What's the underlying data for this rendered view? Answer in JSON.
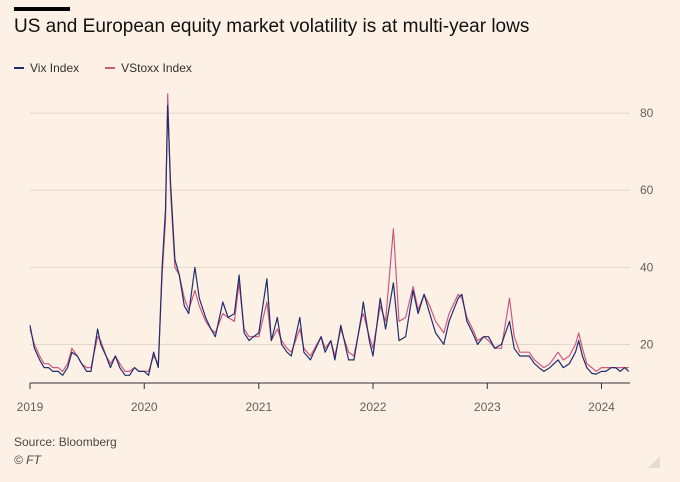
{
  "header": {
    "title": "US and European equity market volatility is at multi-year lows"
  },
  "footer": {
    "source": "Source: Bloomberg",
    "copyright": "© FT"
  },
  "colors": {
    "vix": "#1f2f6e",
    "vstoxx": "#d0587e",
    "background": "#fdf1e6",
    "grid": "#e3d6cb"
  },
  "chart_data": {
    "type": "line",
    "title": "US and European equity market volatility is at multi-year lows",
    "xlabel": "",
    "ylabel": "",
    "x_ticks": [
      "2019",
      "2020",
      "2021",
      "2022",
      "2023",
      "2024"
    ],
    "y_ticks": [
      20,
      40,
      60,
      80
    ],
    "ylim": [
      10,
      86
    ],
    "xlim": [
      "2019-01-01",
      "2024-04-01"
    ],
    "grid": true,
    "legend_position": "top-left",
    "series": [
      {
        "name": "Vix Index",
        "color": "#1f2f6e",
        "points": [
          [
            "2019-01-01",
            25
          ],
          [
            "2019-01-15",
            19
          ],
          [
            "2019-02-01",
            16
          ],
          [
            "2019-02-15",
            14
          ],
          [
            "2019-03-01",
            14
          ],
          [
            "2019-03-15",
            13
          ],
          [
            "2019-04-01",
            13
          ],
          [
            "2019-04-15",
            12
          ],
          [
            "2019-05-01",
            14
          ],
          [
            "2019-05-15",
            18
          ],
          [
            "2019-06-01",
            17
          ],
          [
            "2019-06-15",
            15
          ],
          [
            "2019-07-01",
            13
          ],
          [
            "2019-07-15",
            13
          ],
          [
            "2019-08-05",
            24
          ],
          [
            "2019-08-15",
            20
          ],
          [
            "2019-09-01",
            17
          ],
          [
            "2019-09-15",
            14
          ],
          [
            "2019-10-01",
            17
          ],
          [
            "2019-10-15",
            14
          ],
          [
            "2019-11-01",
            12
          ],
          [
            "2019-11-15",
            12
          ],
          [
            "2019-12-01",
            14
          ],
          [
            "2019-12-15",
            13
          ],
          [
            "2020-01-01",
            13
          ],
          [
            "2020-01-15",
            12
          ],
          [
            "2020-01-31",
            18
          ],
          [
            "2020-02-15",
            14
          ],
          [
            "2020-02-27",
            40
          ],
          [
            "2020-03-09",
            55
          ],
          [
            "2020-03-16",
            82
          ],
          [
            "2020-03-25",
            62
          ],
          [
            "2020-04-08",
            42
          ],
          [
            "2020-04-22",
            38
          ],
          [
            "2020-05-08",
            30
          ],
          [
            "2020-05-22",
            28
          ],
          [
            "2020-06-11",
            40
          ],
          [
            "2020-06-25",
            32
          ],
          [
            "2020-07-15",
            27
          ],
          [
            "2020-08-01",
            24
          ],
          [
            "2020-08-15",
            22
          ],
          [
            "2020-09-08",
            31
          ],
          [
            "2020-09-25",
            27
          ],
          [
            "2020-10-15",
            28
          ],
          [
            "2020-10-30",
            38
          ],
          [
            "2020-11-15",
            23
          ],
          [
            "2020-12-01",
            21
          ],
          [
            "2020-12-15",
            22
          ],
          [
            "2021-01-01",
            23
          ],
          [
            "2021-01-27",
            37
          ],
          [
            "2021-02-10",
            21
          ],
          [
            "2021-03-01",
            27
          ],
          [
            "2021-03-15",
            20
          ],
          [
            "2021-04-01",
            18
          ],
          [
            "2021-04-15",
            17
          ],
          [
            "2021-05-12",
            27
          ],
          [
            "2021-05-25",
            18
          ],
          [
            "2021-06-15",
            16
          ],
          [
            "2021-07-19",
            22
          ],
          [
            "2021-08-01",
            18
          ],
          [
            "2021-08-19",
            21
          ],
          [
            "2021-09-01",
            16
          ],
          [
            "2021-09-20",
            25
          ],
          [
            "2021-10-15",
            16
          ],
          [
            "2021-11-01",
            16
          ],
          [
            "2021-11-26",
            28
          ],
          [
            "2021-12-01",
            31
          ],
          [
            "2021-12-20",
            21
          ],
          [
            "2022-01-01",
            17
          ],
          [
            "2022-01-24",
            32
          ],
          [
            "2022-02-10",
            24
          ],
          [
            "2022-03-07",
            36
          ],
          [
            "2022-03-25",
            21
          ],
          [
            "2022-04-15",
            22
          ],
          [
            "2022-05-09",
            34
          ],
          [
            "2022-05-25",
            28
          ],
          [
            "2022-06-13",
            33
          ],
          [
            "2022-07-01",
            28
          ],
          [
            "2022-07-20",
            23
          ],
          [
            "2022-08-15",
            20
          ],
          [
            "2022-09-01",
            26
          ],
          [
            "2022-09-30",
            32
          ],
          [
            "2022-10-12",
            33
          ],
          [
            "2022-10-28",
            26
          ],
          [
            "2022-11-15",
            23
          ],
          [
            "2022-12-01",
            20
          ],
          [
            "2022-12-20",
            22
          ],
          [
            "2023-01-05",
            22
          ],
          [
            "2023-01-25",
            19
          ],
          [
            "2023-02-15",
            20
          ],
          [
            "2023-03-13",
            26
          ],
          [
            "2023-03-28",
            19
          ],
          [
            "2023-04-15",
            17
          ],
          [
            "2023-05-01",
            17
          ],
          [
            "2023-05-15",
            17
          ],
          [
            "2023-06-01",
            15
          ],
          [
            "2023-06-15",
            14
          ],
          [
            "2023-07-01",
            13
          ],
          [
            "2023-07-20",
            14
          ],
          [
            "2023-08-15",
            16
          ],
          [
            "2023-09-01",
            14
          ],
          [
            "2023-09-20",
            15
          ],
          [
            "2023-10-10",
            18
          ],
          [
            "2023-10-20",
            21
          ],
          [
            "2023-11-01",
            17
          ],
          [
            "2023-11-15",
            14
          ],
          [
            "2023-12-01",
            12.5
          ],
          [
            "2023-12-15",
            12.3
          ],
          [
            "2024-01-01",
            13
          ],
          [
            "2024-01-15",
            13
          ],
          [
            "2024-02-01",
            14
          ],
          [
            "2024-02-15",
            14
          ],
          [
            "2024-03-01",
            13
          ],
          [
            "2024-03-15",
            14
          ],
          [
            "2024-03-28",
            13
          ]
        ]
      },
      {
        "name": "VStoxx Index",
        "color": "#d0587e",
        "points": [
          [
            "2019-01-01",
            24
          ],
          [
            "2019-01-15",
            20
          ],
          [
            "2019-02-01",
            17
          ],
          [
            "2019-02-15",
            15
          ],
          [
            "2019-03-01",
            15
          ],
          [
            "2019-03-15",
            14
          ],
          [
            "2019-04-01",
            14
          ],
          [
            "2019-04-15",
            13
          ],
          [
            "2019-05-01",
            15
          ],
          [
            "2019-05-15",
            19
          ],
          [
            "2019-06-01",
            17
          ],
          [
            "2019-06-15",
            15
          ],
          [
            "2019-07-01",
            14
          ],
          [
            "2019-07-15",
            14
          ],
          [
            "2019-08-05",
            22
          ],
          [
            "2019-08-15",
            21
          ],
          [
            "2019-09-01",
            17
          ],
          [
            "2019-09-15",
            15
          ],
          [
            "2019-10-01",
            17
          ],
          [
            "2019-10-15",
            15
          ],
          [
            "2019-11-01",
            13
          ],
          [
            "2019-11-15",
            13
          ],
          [
            "2019-12-01",
            14
          ],
          [
            "2019-12-15",
            13
          ],
          [
            "2020-01-01",
            13
          ],
          [
            "2020-01-15",
            13
          ],
          [
            "2020-01-31",
            17
          ],
          [
            "2020-02-15",
            15
          ],
          [
            "2020-02-27",
            38
          ],
          [
            "2020-03-09",
            52
          ],
          [
            "2020-03-16",
            85
          ],
          [
            "2020-03-25",
            60
          ],
          [
            "2020-04-08",
            40
          ],
          [
            "2020-04-22",
            38
          ],
          [
            "2020-05-08",
            32
          ],
          [
            "2020-05-22",
            29
          ],
          [
            "2020-06-11",
            34
          ],
          [
            "2020-06-25",
            30
          ],
          [
            "2020-07-15",
            26
          ],
          [
            "2020-08-01",
            24
          ],
          [
            "2020-08-15",
            23
          ],
          [
            "2020-09-08",
            28
          ],
          [
            "2020-09-25",
            27
          ],
          [
            "2020-10-15",
            26
          ],
          [
            "2020-10-30",
            36
          ],
          [
            "2020-11-15",
            24
          ],
          [
            "2020-12-01",
            22
          ],
          [
            "2020-12-15",
            22
          ],
          [
            "2021-01-01",
            22
          ],
          [
            "2021-01-27",
            31
          ],
          [
            "2021-02-10",
            21
          ],
          [
            "2021-03-01",
            24
          ],
          [
            "2021-03-15",
            21
          ],
          [
            "2021-04-01",
            19
          ],
          [
            "2021-04-15",
            18
          ],
          [
            "2021-05-12",
            24
          ],
          [
            "2021-05-25",
            19
          ],
          [
            "2021-06-15",
            17
          ],
          [
            "2021-07-19",
            22
          ],
          [
            "2021-08-01",
            19
          ],
          [
            "2021-08-19",
            21
          ],
          [
            "2021-09-01",
            17
          ],
          [
            "2021-09-20",
            24
          ],
          [
            "2021-10-15",
            18
          ],
          [
            "2021-11-01",
            17
          ],
          [
            "2021-11-26",
            27
          ],
          [
            "2021-12-01",
            28
          ],
          [
            "2021-12-20",
            22
          ],
          [
            "2022-01-01",
            19
          ],
          [
            "2022-01-24",
            30
          ],
          [
            "2022-02-10",
            26
          ],
          [
            "2022-03-07",
            50
          ],
          [
            "2022-03-25",
            26
          ],
          [
            "2022-04-15",
            27
          ],
          [
            "2022-05-09",
            35
          ],
          [
            "2022-05-25",
            29
          ],
          [
            "2022-06-13",
            33
          ],
          [
            "2022-07-01",
            30
          ],
          [
            "2022-07-20",
            26
          ],
          [
            "2022-08-15",
            23
          ],
          [
            "2022-09-01",
            28
          ],
          [
            "2022-09-30",
            33
          ],
          [
            "2022-10-12",
            32
          ],
          [
            "2022-10-28",
            27
          ],
          [
            "2022-11-15",
            24
          ],
          [
            "2022-12-01",
            21
          ],
          [
            "2022-12-20",
            22
          ],
          [
            "2023-01-05",
            21
          ],
          [
            "2023-01-25",
            19
          ],
          [
            "2023-02-15",
            19
          ],
          [
            "2023-03-13",
            32
          ],
          [
            "2023-03-28",
            22
          ],
          [
            "2023-04-15",
            18
          ],
          [
            "2023-05-01",
            18
          ],
          [
            "2023-05-15",
            18
          ],
          [
            "2023-06-01",
            16
          ],
          [
            "2023-06-15",
            15
          ],
          [
            "2023-07-01",
            14
          ],
          [
            "2023-07-20",
            15
          ],
          [
            "2023-08-15",
            18
          ],
          [
            "2023-09-01",
            16
          ],
          [
            "2023-09-20",
            17
          ],
          [
            "2023-10-10",
            20
          ],
          [
            "2023-10-20",
            23
          ],
          [
            "2023-11-01",
            19
          ],
          [
            "2023-11-15",
            15
          ],
          [
            "2023-12-01",
            14
          ],
          [
            "2023-12-15",
            13
          ],
          [
            "2024-01-01",
            14
          ],
          [
            "2024-01-15",
            14
          ],
          [
            "2024-02-01",
            14
          ],
          [
            "2024-02-15",
            14
          ],
          [
            "2024-03-01",
            14
          ],
          [
            "2024-03-15",
            14
          ],
          [
            "2024-03-28",
            14
          ]
        ]
      }
    ]
  }
}
